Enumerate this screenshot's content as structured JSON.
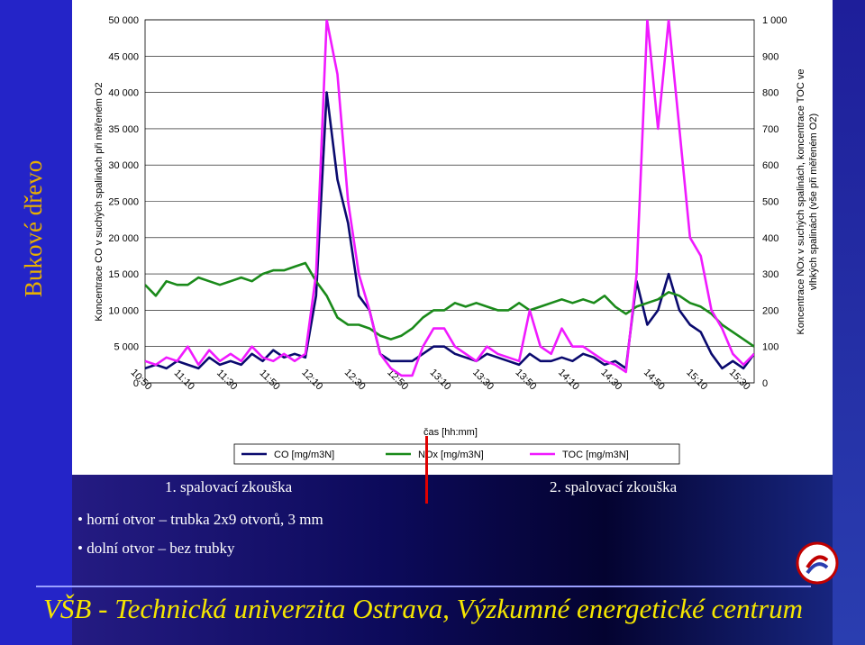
{
  "side_title": "Bukové dřevo",
  "trials": {
    "first": "1. spalovací zkouška",
    "second": "2. spalovací zkouška"
  },
  "bullets": [
    "horní otvor – trubka 2x9 otvorů, 3 mm",
    "dolní otvor – bez trubky"
  ],
  "footer": "VŠB - Technická univerzita Ostrava, Výzkumné energetické centrum",
  "colors": {
    "co": "#0a0a6e",
    "nox": "#1a8a1a",
    "toc": "#f01aff",
    "marker": "#e00000",
    "footer": "#f5e600",
    "side_title": "#e8b000"
  },
  "chart_data": {
    "type": "line",
    "xlabel": "čas [hh:mm]",
    "ylabel_left": "Koncentrace CO v suchých spalinách při měřeném O2",
    "ylabel_right": "Koncentrace NOx v suchých spalinách, koncentrace TOC ve vlhkých spalinách (vše při měřeném O2)",
    "x_ticks": [
      "10:50",
      "11:10",
      "11:30",
      "11:50",
      "12:10",
      "12:30",
      "12:50",
      "13:10",
      "13:30",
      "13:50",
      "14:10",
      "14:30",
      "14:50",
      "15:10",
      "15:30"
    ],
    "x_range": [
      "10:50",
      "15:35"
    ],
    "y_left_ticks": [
      "0",
      "5 000",
      "10 000",
      "15 000",
      "20 000",
      "25 000",
      "30 000",
      "35 000",
      "40 000",
      "45 000",
      "50 000"
    ],
    "y_left_range": [
      0,
      50000
    ],
    "y_right_ticks": [
      "0",
      "100",
      "200",
      "300",
      "400",
      "500",
      "600",
      "700",
      "800",
      "900",
      "1 000"
    ],
    "y_right_range": [
      0,
      1000
    ],
    "grid": "horizontal",
    "legend": {
      "position": "bottom",
      "items": [
        "CO [mg/m3N]",
        "NOx [mg/m3N]",
        "TOC [mg/m3N]"
      ]
    },
    "series": [
      {
        "name": "CO [mg/m3N]",
        "axis": "left",
        "x": [
          "10:50",
          "10:55",
          "11:00",
          "11:05",
          "11:10",
          "11:15",
          "11:20",
          "11:25",
          "11:30",
          "11:35",
          "11:40",
          "11:45",
          "11:50",
          "11:55",
          "12:00",
          "12:05",
          "12:10",
          "12:15",
          "12:20",
          "12:25",
          "12:30",
          "12:35",
          "12:40",
          "12:45",
          "12:50",
          "12:55",
          "13:00",
          "13:05",
          "13:10",
          "13:15",
          "13:20",
          "13:25",
          "13:30",
          "13:35",
          "13:40",
          "13:45",
          "13:50",
          "13:55",
          "14:00",
          "14:05",
          "14:10",
          "14:15",
          "14:20",
          "14:25",
          "14:30",
          "14:35",
          "14:40",
          "14:45",
          "14:50",
          "14:55",
          "15:00",
          "15:05",
          "15:10",
          "15:15",
          "15:20",
          "15:25",
          "15:30",
          "15:35"
        ],
        "values": [
          2000,
          2500,
          2000,
          3000,
          2500,
          2000,
          3500,
          2500,
          3000,
          2500,
          4000,
          3000,
          4500,
          3500,
          4000,
          3500,
          12000,
          40000,
          28000,
          22000,
          12000,
          10000,
          4000,
          3000,
          3000,
          3000,
          4000,
          5000,
          5000,
          4000,
          3500,
          3000,
          4000,
          3500,
          3000,
          2500,
          4000,
          3000,
          3000,
          3500,
          3000,
          4000,
          3500,
          2500,
          3000,
          2000,
          14000,
          8000,
          10000,
          15000,
          10000,
          8000,
          7000,
          4000,
          2000,
          3000,
          2000,
          4000
        ]
      },
      {
        "name": "NOx [mg/m3N]",
        "axis": "left",
        "x": [
          "10:50",
          "10:55",
          "11:00",
          "11:05",
          "11:10",
          "11:15",
          "11:20",
          "11:25",
          "11:30",
          "11:35",
          "11:40",
          "11:45",
          "11:50",
          "11:55",
          "12:00",
          "12:05",
          "12:10",
          "12:15",
          "12:20",
          "12:25",
          "12:30",
          "12:35",
          "12:40",
          "12:45",
          "12:50",
          "12:55",
          "13:00",
          "13:05",
          "13:10",
          "13:15",
          "13:20",
          "13:25",
          "13:30",
          "13:35",
          "13:40",
          "13:45",
          "13:50",
          "13:55",
          "14:00",
          "14:05",
          "14:10",
          "14:15",
          "14:20",
          "14:25",
          "14:30",
          "14:35",
          "14:40",
          "14:45",
          "14:50",
          "14:55",
          "15:00",
          "15:05",
          "15:10",
          "15:15",
          "15:20",
          "15:25",
          "15:30",
          "15:35"
        ],
        "values": [
          13500,
          12000,
          14000,
          13500,
          13500,
          14500,
          14000,
          13500,
          14000,
          14500,
          14000,
          15000,
          15500,
          15500,
          16000,
          16500,
          14000,
          12000,
          9000,
          8000,
          8000,
          7500,
          6500,
          6000,
          6500,
          7500,
          9000,
          10000,
          10000,
          11000,
          10500,
          11000,
          10500,
          10000,
          10000,
          11000,
          10000,
          10500,
          11000,
          11500,
          11000,
          11500,
          11000,
          12000,
          10500,
          9500,
          10500,
          11000,
          11500,
          12500,
          12000,
          11000,
          10500,
          9500,
          8000,
          7000,
          6000,
          5000
        ]
      },
      {
        "name": "TOC [mg/m3N]",
        "axis": "right",
        "x": [
          "10:50",
          "10:55",
          "11:00",
          "11:05",
          "11:10",
          "11:15",
          "11:20",
          "11:25",
          "11:30",
          "11:35",
          "11:40",
          "11:45",
          "11:50",
          "11:55",
          "12:00",
          "12:05",
          "12:10",
          "12:15",
          "12:20",
          "12:25",
          "12:30",
          "12:35",
          "12:40",
          "12:45",
          "12:50",
          "12:55",
          "13:00",
          "13:05",
          "13:10",
          "13:15",
          "13:20",
          "13:25",
          "13:30",
          "13:35",
          "13:40",
          "13:45",
          "13:50",
          "13:55",
          "14:00",
          "14:05",
          "14:10",
          "14:15",
          "14:20",
          "14:25",
          "14:30",
          "14:35",
          "14:40",
          "14:45",
          "14:50",
          "14:55",
          "15:00",
          "15:05",
          "15:10",
          "15:15",
          "15:20",
          "15:25",
          "15:30",
          "15:35"
        ],
        "values": [
          60,
          50,
          70,
          60,
          100,
          50,
          90,
          60,
          80,
          60,
          100,
          70,
          60,
          80,
          60,
          80,
          300,
          1000,
          850,
          500,
          300,
          200,
          80,
          40,
          20,
          20,
          100,
          150,
          150,
          100,
          80,
          60,
          100,
          80,
          70,
          60,
          200,
          100,
          80,
          150,
          100,
          100,
          80,
          60,
          50,
          30,
          300,
          1000,
          700,
          1000,
          700,
          400,
          350,
          200,
          150,
          80,
          50,
          80
        ]
      }
    ]
  }
}
